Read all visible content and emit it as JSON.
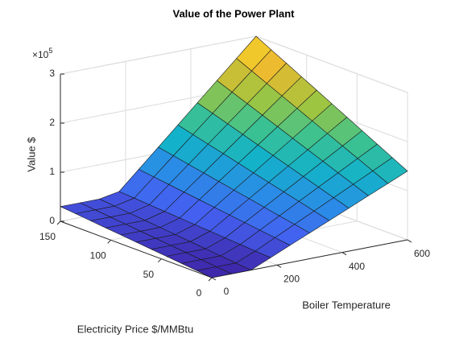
{
  "chart_data": {
    "type": "surface",
    "title": "Value of the Power Plant",
    "xlabel": "Boiler Temperature",
    "ylabel": "Electricity Price $/MMBtu",
    "zlabel": "Value $",
    "z_exponent": {
      "base": "×10",
      "power": "5"
    },
    "x": [
      0,
      60,
      120,
      180,
      240,
      300,
      360,
      420,
      480,
      540,
      600
    ],
    "y": [
      0,
      15,
      30,
      45,
      60,
      75,
      90,
      105,
      120,
      135,
      150
    ],
    "z": [
      [
        0,
        0,
        0,
        0.175,
        0.35,
        0.525,
        0.7,
        0.875,
        1.05,
        1.225,
        1.4
      ],
      [
        0.03,
        0.03,
        0.03,
        0.195,
        0.39,
        0.585,
        0.78,
        0.975,
        1.17,
        1.365,
        1.56
      ],
      [
        0.06,
        0.06,
        0.06,
        0.215,
        0.43,
        0.645,
        0.86,
        1.075,
        1.29,
        1.505,
        1.72
      ],
      [
        0.09,
        0.09,
        0.09,
        0.235,
        0.47,
        0.705,
        0.94,
        1.175,
        1.41,
        1.645,
        1.88
      ],
      [
        0.12,
        0.12,
        0.12,
        0.255,
        0.51,
        0.765,
        1.02,
        1.275,
        1.53,
        1.785,
        2.04
      ],
      [
        0.15,
        0.15,
        0.15,
        0.275,
        0.55,
        0.825,
        1.1,
        1.375,
        1.65,
        1.925,
        2.2
      ],
      [
        0.18,
        0.18,
        0.18,
        0.295,
        0.59,
        0.885,
        1.18,
        1.475,
        1.77,
        2.065,
        2.36
      ],
      [
        0.21,
        0.21,
        0.21,
        0.315,
        0.63,
        0.945,
        1.26,
        1.575,
        1.89,
        2.205,
        2.52
      ],
      [
        0.24,
        0.24,
        0.24,
        0.335,
        0.67,
        1.005,
        1.34,
        1.675,
        2.01,
        2.345,
        2.68
      ],
      [
        0.27,
        0.27,
        0.27,
        0.355,
        0.71,
        1.065,
        1.42,
        1.775,
        2.13,
        2.485,
        2.84
      ],
      [
        0.3,
        0.3,
        0.3,
        0.375,
        0.75,
        1.125,
        1.5,
        1.875,
        2.25,
        2.625,
        3.0
      ]
    ],
    "xlim": [
      0,
      600
    ],
    "xticks": [
      0,
      200,
      400,
      600
    ],
    "ylim": [
      0,
      150
    ],
    "yticks": [
      0,
      50,
      100,
      150
    ],
    "zlim": [
      0,
      3
    ],
    "zticks": [
      0,
      1,
      2,
      3
    ],
    "grid": true,
    "colormap": [
      "#3e26a8",
      "#4460f0",
      "#2a8ce6",
      "#14b2c9",
      "#3dc28f",
      "#9fc540",
      "#ecba30",
      "#f9de26"
    ]
  }
}
